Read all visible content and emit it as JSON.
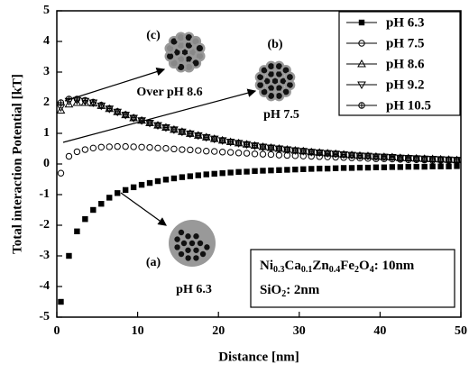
{
  "chart_data": {
    "type": "scatter",
    "x_label": "Distance [nm]",
    "y_label": "Total interaction Potential [kT]",
    "xlim": [
      0,
      50
    ],
    "ylim": [
      -5,
      5
    ],
    "xticks": [
      0,
      10,
      20,
      30,
      40,
      50
    ],
    "yticks": [
      -5,
      -4,
      -3,
      -2,
      -1,
      0,
      1,
      2,
      3,
      4,
      5
    ],
    "legend": "upper right",
    "x": [
      0.5,
      1.5,
      2.5,
      3.5,
      4.5,
      5.5,
      6.5,
      7.5,
      8.5,
      9.5,
      10.5,
      11.5,
      12.5,
      13.5,
      14.5,
      15.5,
      16.5,
      17.5,
      18.5,
      19.5,
      20.5,
      21.5,
      22.5,
      23.5,
      24.5,
      25.5,
      26.5,
      27.5,
      28.5,
      29.5,
      30.5,
      31.5,
      32.5,
      33.5,
      34.5,
      35.5,
      36.5,
      37.5,
      38.5,
      39.5,
      40.5,
      41.5,
      42.5,
      43.5,
      44.5,
      45.5,
      46.5,
      47.5,
      48.5,
      49.5
    ],
    "series": [
      {
        "name": "pH 6.3",
        "marker": "square",
        "color": "#000000",
        "values": [
          -4.5,
          -3.0,
          -2.2,
          -1.8,
          -1.5,
          -1.3,
          -1.1,
          -0.95,
          -0.85,
          -0.76,
          -0.68,
          -0.62,
          -0.56,
          -0.51,
          -0.47,
          -0.43,
          -0.4,
          -0.37,
          -0.34,
          -0.32,
          -0.3,
          -0.28,
          -0.26,
          -0.25,
          -0.23,
          -0.22,
          -0.21,
          -0.2,
          -0.19,
          -0.18,
          -0.17,
          -0.16,
          -0.15,
          -0.15,
          -0.14,
          -0.13,
          -0.13,
          -0.12,
          -0.12,
          -0.11,
          -0.11,
          -0.1,
          -0.1,
          -0.09,
          -0.09,
          -0.09,
          -0.08,
          -0.08,
          -0.08,
          -0.07
        ]
      },
      {
        "name": "pH 7.5",
        "marker": "circle",
        "color": "#000000",
        "values": [
          -0.3,
          0.25,
          0.4,
          0.47,
          0.52,
          0.55,
          0.56,
          0.57,
          0.57,
          0.56,
          0.55,
          0.54,
          0.52,
          0.51,
          0.49,
          0.47,
          0.46,
          0.44,
          0.42,
          0.41,
          0.39,
          0.38,
          0.36,
          0.35,
          0.33,
          0.32,
          0.31,
          0.29,
          0.28,
          0.27,
          0.26,
          0.25,
          0.24,
          0.23,
          0.22,
          0.21,
          0.2,
          0.19,
          0.18,
          0.17,
          0.17,
          0.16,
          0.15,
          0.14,
          0.14,
          0.13,
          0.12,
          0.12,
          0.11,
          0.1
        ]
      },
      {
        "name": "pH 8.6",
        "marker": "triangle-up",
        "color": "#000000",
        "values": [
          1.75,
          1.95,
          2.0,
          2.0,
          1.98,
          1.9,
          1.8,
          1.7,
          1.6,
          1.5,
          1.42,
          1.34,
          1.26,
          1.19,
          1.12,
          1.05,
          0.99,
          0.93,
          0.87,
          0.82,
          0.77,
          0.72,
          0.68,
          0.64,
          0.6,
          0.56,
          0.53,
          0.5,
          0.47,
          0.44,
          0.42,
          0.39,
          0.37,
          0.35,
          0.33,
          0.31,
          0.29,
          0.27,
          0.26,
          0.24,
          0.23,
          0.22,
          0.2,
          0.19,
          0.18,
          0.17,
          0.16,
          0.15,
          0.14,
          0.13
        ]
      },
      {
        "name": "pH 9.2",
        "marker": "triangle-down",
        "color": "#000000",
        "values": [
          1.85,
          2.05,
          2.08,
          2.05,
          2.0,
          1.9,
          1.8,
          1.7,
          1.6,
          1.5,
          1.42,
          1.34,
          1.26,
          1.19,
          1.12,
          1.05,
          0.99,
          0.93,
          0.87,
          0.82,
          0.77,
          0.72,
          0.68,
          0.64,
          0.6,
          0.56,
          0.53,
          0.5,
          0.47,
          0.44,
          0.42,
          0.39,
          0.37,
          0.35,
          0.33,
          0.31,
          0.29,
          0.27,
          0.26,
          0.24,
          0.23,
          0.22,
          0.2,
          0.19,
          0.18,
          0.17,
          0.16,
          0.15,
          0.14,
          0.13
        ]
      },
      {
        "name": "pH 10.5",
        "marker": "circle-plus",
        "color": "#000000",
        "values": [
          2.0,
          2.12,
          2.12,
          2.08,
          2.02,
          1.92,
          1.81,
          1.71,
          1.61,
          1.51,
          1.42,
          1.34,
          1.26,
          1.19,
          1.12,
          1.05,
          0.99,
          0.93,
          0.87,
          0.82,
          0.77,
          0.72,
          0.68,
          0.64,
          0.6,
          0.56,
          0.53,
          0.5,
          0.47,
          0.44,
          0.42,
          0.39,
          0.37,
          0.35,
          0.33,
          0.31,
          0.29,
          0.27,
          0.26,
          0.24,
          0.23,
          0.22,
          0.2,
          0.19,
          0.18,
          0.17,
          0.16,
          0.15,
          0.14,
          0.13
        ]
      }
    ],
    "annotations": [
      "(a)",
      "pH 6.3",
      "(b)",
      "pH 7.5",
      "(c)",
      "Over pH 8.6"
    ],
    "composition": [
      "Ni",
      "0.3",
      "Ca",
      "0.1",
      "Zn",
      "0.4",
      "Fe",
      "2",
      "O",
      "4",
      ": 10nm"
    ],
    "shell": [
      "SiO",
      "2",
      ": 2nm"
    ]
  }
}
